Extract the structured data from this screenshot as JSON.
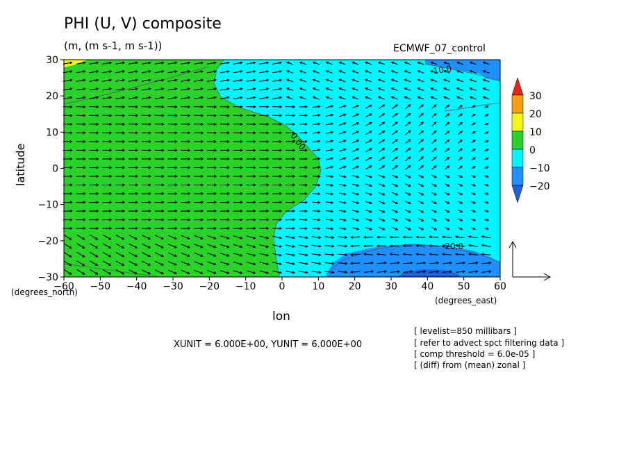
{
  "header": {
    "title": "PHI (U, V) composite",
    "subtitle": "(m, (m s-1, m s-1))",
    "dataset": "ECMWF_07_control"
  },
  "axes": {
    "xlabel": "lon",
    "ylabel": "latitude",
    "x_unit_note": "(degrees_north)",
    "y_unit_note": "(degrees_east)"
  },
  "footer": {
    "units_line": "XUNIT = 6.000E+00, YUNIT = 6.000E+00",
    "info": [
      "[ levelist=850 millibars ]",
      "[ refer to advect spct filtering data ]",
      "[ comp threshold = 6.0e-05 ]",
      "[ (diff) from (mean) zonal ]"
    ]
  },
  "chart_data": {
    "type": "heatmap",
    "x_range": [
      -60,
      60
    ],
    "y_range": [
      -30,
      30
    ],
    "x_ticks": [
      "−60",
      "−50",
      "−40",
      "−30",
      "−20",
      "−10",
      "0",
      "10",
      "20",
      "30",
      "40",
      "50",
      "60"
    ],
    "y_ticks": [
      "30",
      "20",
      "10",
      "0",
      "−10",
      "−20",
      "−30"
    ],
    "x_tick_values": [
      -60,
      -50,
      -40,
      -30,
      -20,
      -10,
      0,
      10,
      20,
      30,
      40,
      50,
      60
    ],
    "y_tick_values": [
      30,
      20,
      10,
      0,
      -10,
      -20,
      -30
    ],
    "colorbar": {
      "levels": [
        -20,
        -10,
        0,
        10,
        20,
        30
      ],
      "labels": [
        "30",
        "20",
        "10",
        "0",
        "−10",
        "−20"
      ],
      "colors": {
        "above_30": "#e8231c",
        "20_30": "#f5a00f",
        "10_20": "#f5f51e",
        "0_10": "#2ad22a",
        "m10_0": "#00f5ff",
        "m20_m10": "#1e90ff",
        "below_m20": "#1e5fdc"
      }
    },
    "contour_labels": [
      "-10.0",
      "0.00",
      "-20.0"
    ],
    "reference_vector": "present"
  }
}
